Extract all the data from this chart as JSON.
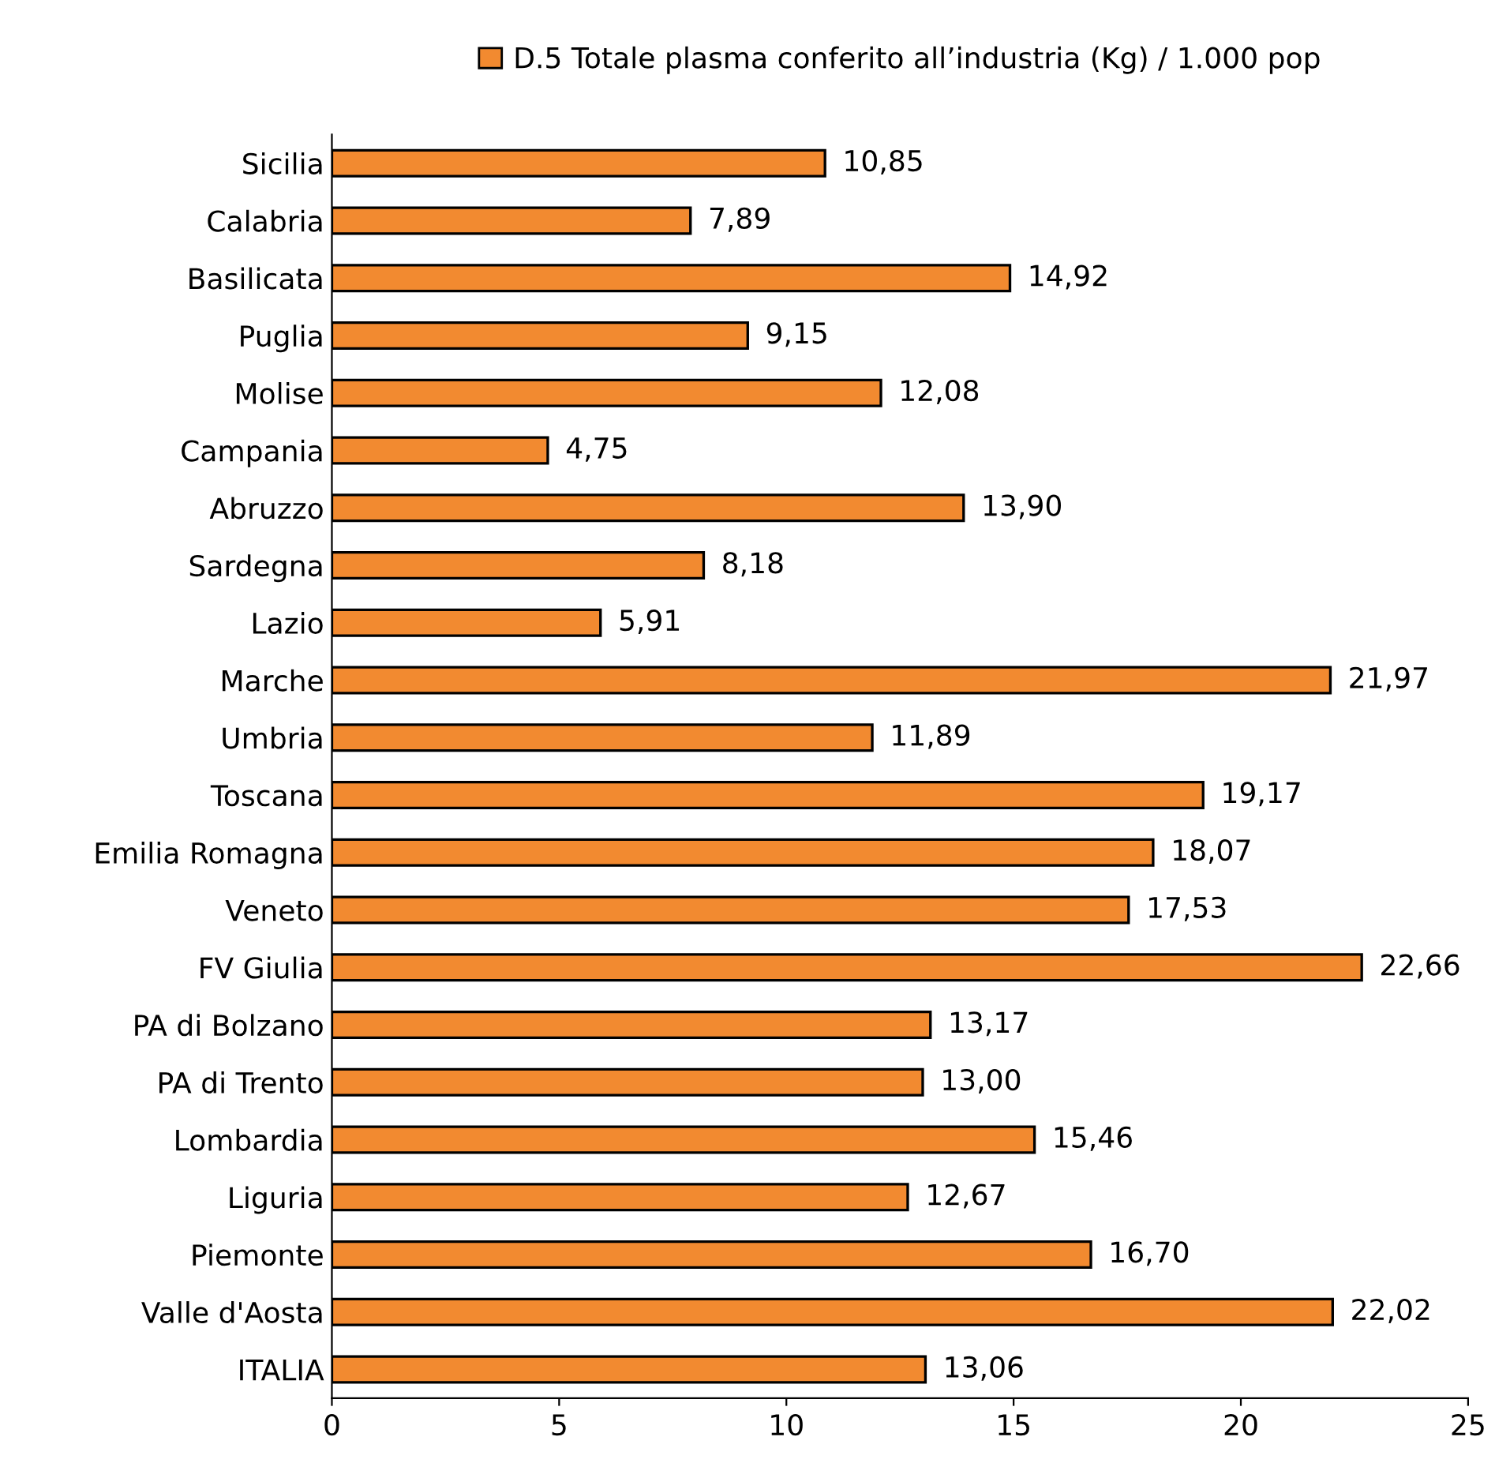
{
  "chart_data": {
    "type": "bar",
    "orientation": "horizontal",
    "categories": [
      "Sicilia",
      "Calabria",
      "Basilicata",
      "Puglia",
      "Molise",
      "Campania",
      "Abruzzo",
      "Sardegna",
      "Lazio",
      "Marche",
      "Umbria",
      "Toscana",
      "Emilia Romagna",
      "Veneto",
      "FV Giulia",
      "PA di Bolzano",
      "PA di Trento",
      "Lombardia",
      "Liguria",
      "Piemonte",
      "Valle d'Aosta",
      "ITALIA"
    ],
    "series": [
      {
        "name": "D.5 Totale plasma conferito all’industria (Kg) / 1.000 pop",
        "color": "#f28a30",
        "values": [
          10.85,
          7.89,
          14.92,
          9.15,
          12.08,
          4.75,
          13.9,
          8.18,
          5.91,
          21.97,
          11.89,
          19.17,
          18.07,
          17.53,
          22.66,
          13.17,
          13.0,
          15.46,
          12.67,
          16.7,
          22.02,
          13.06
        ],
        "value_labels": [
          "10,85",
          "7,89",
          "14,92",
          "9,15",
          "12,08",
          "4,75",
          "13,90",
          "8,18",
          "5,91",
          "21,97",
          "11,89",
          "19,17",
          "18,07",
          "17,53",
          "22,66",
          "13,17",
          "13,00",
          "15,46",
          "12,67",
          "16,70",
          "22,02",
          "13,06"
        ]
      }
    ],
    "xlim": [
      0,
      25
    ],
    "xticks": [
      0,
      5,
      10,
      15,
      20,
      25
    ],
    "grid": false,
    "legend": "top"
  }
}
